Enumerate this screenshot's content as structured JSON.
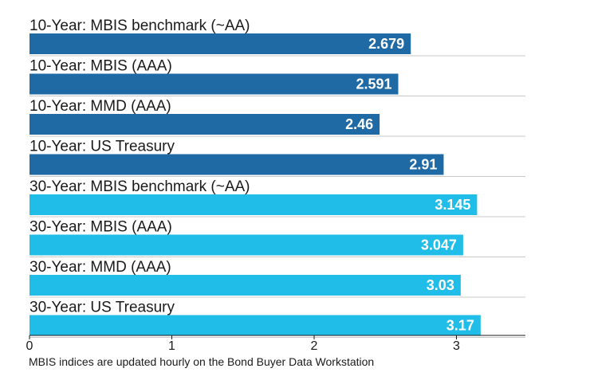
{
  "chart_data": {
    "type": "bar",
    "orientation": "horizontal",
    "categories": [
      "10-Year: MBIS benchmark (~AA)",
      "10-Year: MBIS (AAA)",
      "10-Year: MMD (AAA)",
      "10-Year: US Treasury",
      "30-Year: MBIS benchmark (~AA)",
      "30-Year: MBIS (AAA)",
      "30-Year: MMD (AAA)",
      "30-Year: US Treasury"
    ],
    "values": [
      2.679,
      2.591,
      2.46,
      2.91,
      3.145,
      3.047,
      3.03,
      3.17
    ],
    "value_labels": [
      "2.679",
      "2.591",
      "2.46",
      "2.91",
      "3.145",
      "3.047",
      "3.03",
      "3.17"
    ],
    "bar_colors": [
      "#1f6aa5",
      "#1f6aa5",
      "#1f6aa5",
      "#1f6aa5",
      "#20bde8",
      "#20bde8",
      "#20bde8",
      "#20bde8"
    ],
    "xticks": [
      "0",
      "1",
      "2",
      "3"
    ],
    "xlim": [
      0,
      3.5
    ],
    "grid": "horizontal separators",
    "title": "",
    "xlabel": "",
    "ylabel": ""
  },
  "footnote": "MBIS indices are updated hourly on the Bond Buyer Data Workstation"
}
